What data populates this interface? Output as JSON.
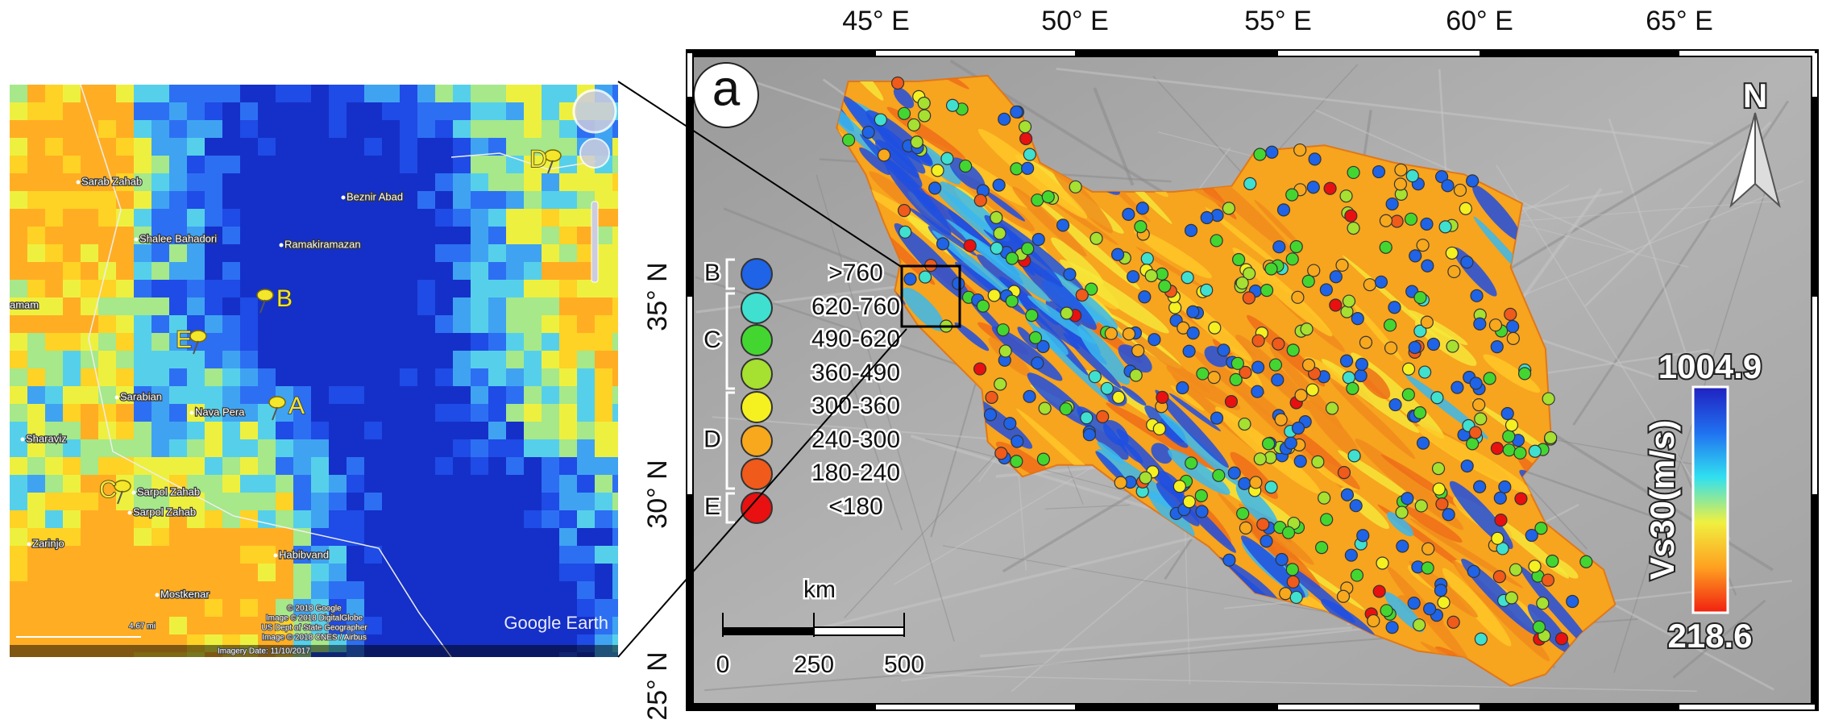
{
  "inset": {
    "places": [
      {
        "label": "Sarab Zahab"
      },
      {
        "label": "Shalee Bahadori"
      },
      {
        "label": "Ramakiramazan"
      },
      {
        "label": "Beznir Abad"
      },
      {
        "label": "amam"
      },
      {
        "label": "Sarabian"
      },
      {
        "label": "Nava Pera"
      },
      {
        "label": "Sharaviz"
      },
      {
        "label": "Sarpol Zahab"
      },
      {
        "label": "Sarpol Zahab"
      },
      {
        "label": "Zarinjo"
      },
      {
        "label": "Habibvand"
      },
      {
        "label": "Mostkenar"
      }
    ],
    "markers": [
      "A",
      "B",
      "C",
      "D",
      "E"
    ],
    "watermark": "Google Earth",
    "scale": "4.67 mi",
    "credits": [
      "© 2018 Google",
      "Image © 2018 DigitalGlobe",
      "US Dept of State Geographer",
      "Image © 2018 CNES / Airbus"
    ],
    "status": "Imagery Date: 11/10/2017"
  },
  "map": {
    "panel_label": "a",
    "lon_ticks": [
      "45° E",
      "50° E",
      "55° E",
      "60° E",
      "65° E"
    ],
    "lat_ticks": [
      "35° N",
      "30° N",
      "25° N"
    ],
    "north": "N",
    "legend": {
      "groups": [
        {
          "letter": "B",
          "classes": [
            {
              "label": ">760",
              "color": "#1f63e6"
            }
          ]
        },
        {
          "letter": "C",
          "classes": [
            {
              "label": "620-760",
              "color": "#3fe0d0"
            },
            {
              "label": "490-620",
              "color": "#44d630"
            },
            {
              "label": "360-490",
              "color": "#a6e030"
            }
          ]
        },
        {
          "letter": "D",
          "classes": [
            {
              "label": "300-360",
              "color": "#f5f020"
            },
            {
              "label": "240-300",
              "color": "#f7a81c"
            },
            {
              "label": "180-240",
              "color": "#f05a1a"
            }
          ]
        },
        {
          "letter": "E",
          "classes": [
            {
              "label": "<180",
              "color": "#e81010"
            }
          ]
        }
      ]
    },
    "colorbar": {
      "title": "Vs30(m/s)",
      "max": 1004.9,
      "min": 218.6
    },
    "scale": {
      "unit": "km",
      "labels": [
        0,
        250,
        500
      ]
    }
  }
}
